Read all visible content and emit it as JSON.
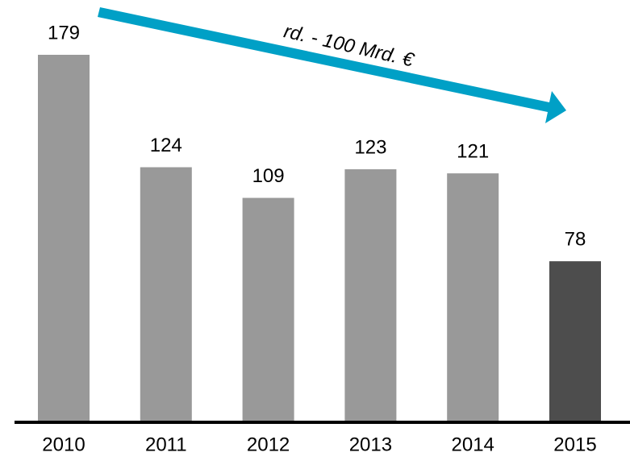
{
  "chart_data": {
    "type": "bar",
    "categories": [
      "2010",
      "2011",
      "2012",
      "2013",
      "2014",
      "2015"
    ],
    "values": [
      179,
      124,
      109,
      123,
      121,
      78
    ],
    "colors": [
      "#999999",
      "#999999",
      "#999999",
      "#999999",
      "#999999",
      "#4d4d4d"
    ],
    "annotation": "rd. - 100 Mrd. €"
  }
}
